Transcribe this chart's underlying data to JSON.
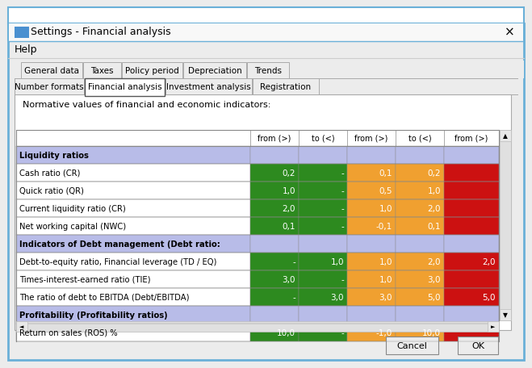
{
  "title": "Settings - Financial analysis",
  "help_text": "Help",
  "tabs_row1": [
    "General data",
    "Taxes",
    "Policy period",
    "Depreciation",
    "Trends"
  ],
  "tabs_row2": [
    "Number formats",
    "Financial analysis",
    "Investment analysis",
    "Registration"
  ],
  "active_tab": "Financial analysis",
  "subtitle": "Normative values of financial and economic indicators:",
  "col_headers": [
    "",
    "from (>)",
    "to (<)",
    "from (>)",
    "to (<)",
    "from (>)"
  ],
  "rows": [
    {
      "label": "Liquidity ratios",
      "bold": true,
      "values": [
        "",
        "",
        "",
        "",
        ""
      ],
      "colors": [
        "#b8bce8",
        "#b8bce8",
        "#b8bce8",
        "#b8bce8",
        "#b8bce8"
      ]
    },
    {
      "label": "Cash ratio (CR)",
      "bold": false,
      "values": [
        "0,2",
        "-",
        "0,1",
        "0,2",
        ""
      ],
      "colors": [
        "#2d8a1f",
        "#2d8a1f",
        "#f0a030",
        "#f0a030",
        "#cc1111"
      ]
    },
    {
      "label": "Quick ratio (QR)",
      "bold": false,
      "values": [
        "1,0",
        "-",
        "0,5",
        "1,0",
        ""
      ],
      "colors": [
        "#2d8a1f",
        "#2d8a1f",
        "#f0a030",
        "#f0a030",
        "#cc1111"
      ]
    },
    {
      "label": "Current liquidity ratio (CR)",
      "bold": false,
      "values": [
        "2,0",
        "-",
        "1,0",
        "2,0",
        ""
      ],
      "colors": [
        "#2d8a1f",
        "#2d8a1f",
        "#f0a030",
        "#f0a030",
        "#cc1111"
      ]
    },
    {
      "label": "Net working capital (NWC)",
      "bold": false,
      "values": [
        "0,1",
        "-",
        "-0,1",
        "0,1",
        ""
      ],
      "colors": [
        "#2d8a1f",
        "#2d8a1f",
        "#f0a030",
        "#f0a030",
        "#cc1111"
      ]
    },
    {
      "label": "Indicators of Debt management (Debt ratio:",
      "bold": true,
      "values": [
        "",
        "",
        "",
        "",
        ""
      ],
      "colors": [
        "#b8bce8",
        "#b8bce8",
        "#b8bce8",
        "#b8bce8",
        "#b8bce8"
      ]
    },
    {
      "label": "Debt-to-equity ratio, Financial leverage (TD / EQ)",
      "bold": false,
      "values": [
        "-",
        "1,0",
        "1,0",
        "2,0",
        "2,0"
      ],
      "colors": [
        "#2d8a1f",
        "#2d8a1f",
        "#f0a030",
        "#f0a030",
        "#cc1111"
      ]
    },
    {
      "label": "Times-interest-earned ratio (TIE)",
      "bold": false,
      "values": [
        "3,0",
        "-",
        "1,0",
        "3,0",
        ""
      ],
      "colors": [
        "#2d8a1f",
        "#2d8a1f",
        "#f0a030",
        "#f0a030",
        "#cc1111"
      ]
    },
    {
      "label": "The ratio of debt to EBITDA (Debt/EBITDA)",
      "bold": false,
      "values": [
        "-",
        "3,0",
        "3,0",
        "5,0",
        "5,0"
      ],
      "colors": [
        "#2d8a1f",
        "#2d8a1f",
        "#f0a030",
        "#f0a030",
        "#cc1111"
      ]
    },
    {
      "label": "Profitability (Profitability ratios)",
      "bold": true,
      "values": [
        "",
        "",
        "",
        "",
        ""
      ],
      "colors": [
        "#b8bce8",
        "#b8bce8",
        "#b8bce8",
        "#b8bce8",
        "#b8bce8"
      ]
    },
    {
      "label": "Return on sales (ROS) %",
      "bold": false,
      "values": [
        "10,0",
        "-",
        "-1,0",
        "10,0",
        ""
      ],
      "colors": [
        "#2d8a1f",
        "#2d8a1f",
        "#f0a030",
        "#f0a030",
        "#cc1111"
      ]
    }
  ],
  "bg_color": "#ececec",
  "title_bar_color": "#ffffff",
  "window_border_color": "#6ab0d8",
  "content_bg": "#f5f5f5",
  "green": "#2d8a1f",
  "orange": "#f0a030",
  "red": "#cc1111",
  "blue_header": "#b8bce8",
  "tab_border": "#aaaaaa"
}
